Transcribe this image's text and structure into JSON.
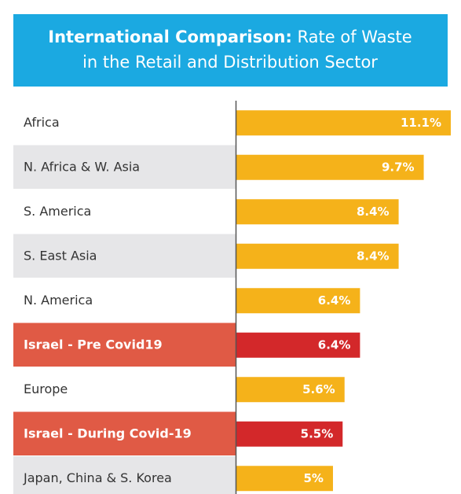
{
  "chart_data": {
    "type": "bar",
    "orientation": "horizontal",
    "title": "International Comparison:",
    "title_rest": "Rate of Waste in the Retail and Distribution Sector",
    "categories": [
      "Africa",
      "N. Africa & W. Asia",
      "S. America",
      "S. East Asia",
      "N. America",
      "Israel - Pre Covid19",
      "Europe",
      "Israel - During Covid-19",
      "Japan, China & S. Korea"
    ],
    "values": [
      11.1,
      9.7,
      8.4,
      8.4,
      6.4,
      6.4,
      5.6,
      5.5,
      5
    ],
    "value_labels": [
      "11.1%",
      "9.7%",
      "8.4%",
      "8.4%",
      "6.4%",
      "6.4%",
      "5.6%",
      "5.5%",
      "5%"
    ],
    "colors": [
      "#f5b21a",
      "#f5b21a",
      "#f5b21a",
      "#f5b21a",
      "#f5b21a",
      "#d3282a",
      "#f5b21a",
      "#d3282a",
      "#f5b21a"
    ],
    "row_colors": [
      "#ffffff",
      "#e6e6e8",
      "#ffffff",
      "#e6e6e8",
      "#ffffff",
      "#e05a45",
      "#ffffff",
      "#e05a45",
      "#e6e6e8"
    ],
    "header_color": "#1ba9e1"
  }
}
